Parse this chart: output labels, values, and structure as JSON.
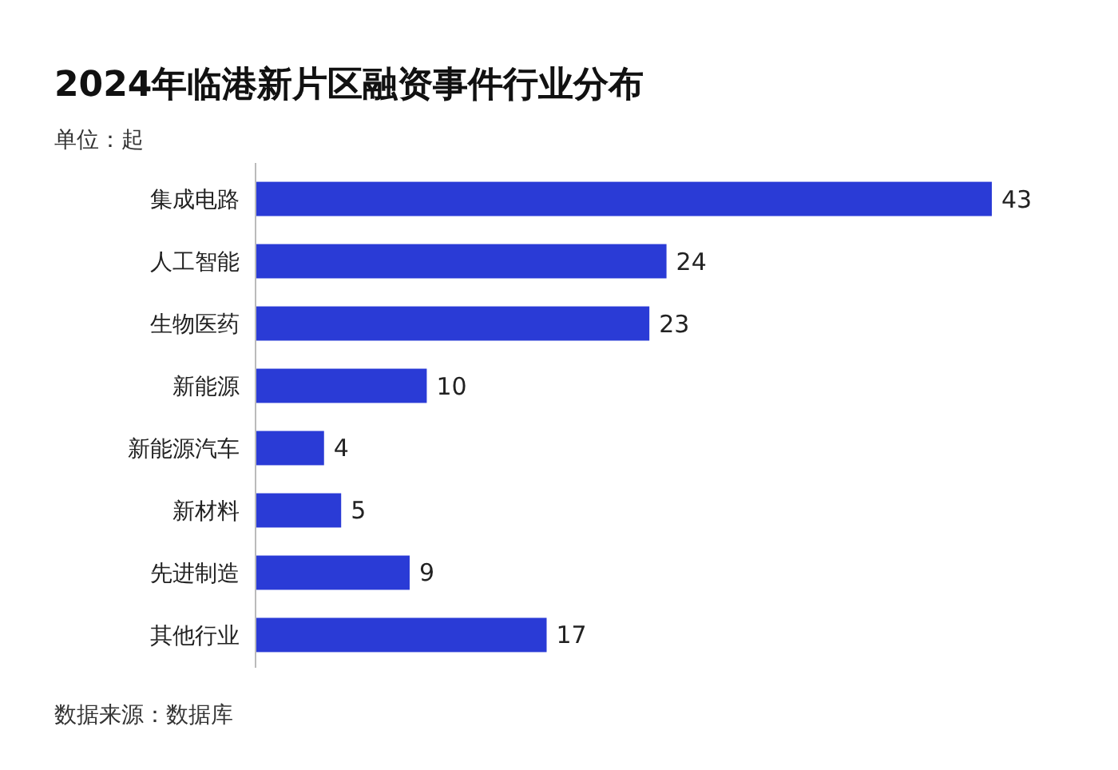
{
  "chart_data": {
    "type": "bar",
    "orientation": "horizontal",
    "title": "2024年临港新片区融资事件行业分布",
    "subtitle": "单位：起",
    "categories": [
      "集成电路",
      "人工智能",
      "生物医药",
      "新能源",
      "新能源汽车",
      "新材料",
      "先进制造",
      "其他行业"
    ],
    "values": [
      43,
      24,
      23,
      10,
      4,
      5,
      9,
      17
    ],
    "color": "#2a3bd6",
    "data_labels": true,
    "annotations": [
      "数据来源：数据库"
    ]
  }
}
